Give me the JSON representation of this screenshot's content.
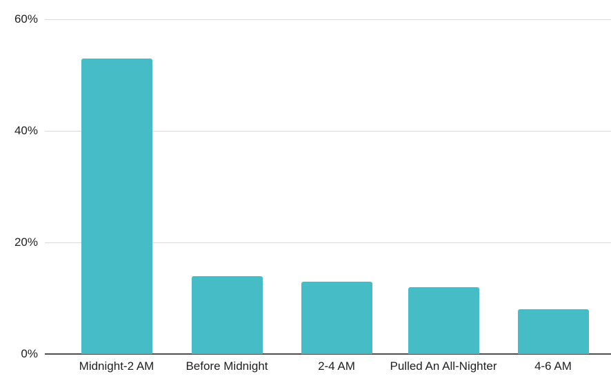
{
  "chart_data": {
    "type": "bar",
    "title": "",
    "xlabel": "",
    "ylabel": "",
    "categories": [
      "Midnight-2 AM",
      "Before Midnight",
      "2-4 AM",
      "Pulled An All-Nighter",
      "4-6 AM"
    ],
    "values": [
      53,
      14,
      13,
      12,
      8
    ],
    "unit": "%",
    "ylim": [
      0,
      60
    ],
    "yticks": [
      {
        "value": 0,
        "label": "0%"
      },
      {
        "value": 20,
        "label": "20%"
      },
      {
        "value": 40,
        "label": "40%"
      },
      {
        "value": 60,
        "label": "60%"
      }
    ],
    "grid": true,
    "legend": "none",
    "colors": {
      "bar": "#46BDC6",
      "gridline": "#d9d9d9",
      "axis_line": "#4d4d4d",
      "label_text": "#1f1f1f",
      "background": "#ffffff"
    }
  }
}
